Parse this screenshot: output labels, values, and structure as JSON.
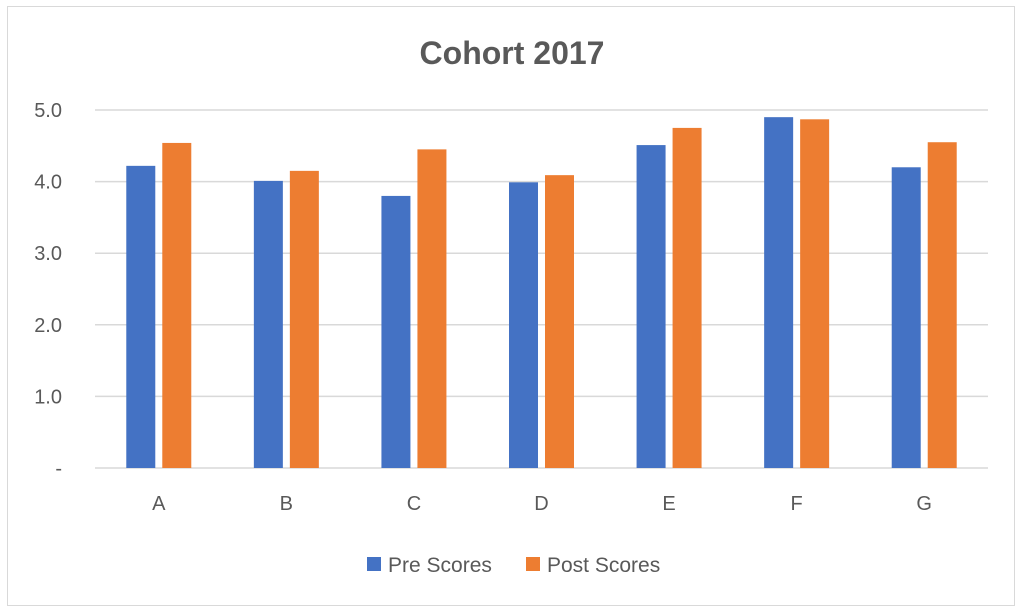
{
  "chart_data": {
    "type": "bar",
    "title": "Cohort 2017",
    "categories": [
      "A",
      "B",
      "C",
      "D",
      "E",
      "F",
      "G"
    ],
    "series": [
      {
        "name": "Pre Scores",
        "color": "#4472c4",
        "values": [
          4.22,
          4.01,
          3.8,
          3.99,
          4.51,
          4.9,
          4.2
        ]
      },
      {
        "name": "Post Scores",
        "color": "#ed7d31",
        "values": [
          4.54,
          4.15,
          4.45,
          4.09,
          4.75,
          4.87,
          4.55
        ]
      }
    ],
    "ylim": [
      0,
      5
    ],
    "yticks": [
      0,
      1,
      2,
      3,
      4,
      5
    ],
    "ytick_labels": [
      "-",
      "1.0",
      "2.0",
      "3.0",
      "4.0",
      "5.0"
    ],
    "xlabel": "",
    "ylabel": "",
    "grid": true,
    "legend_position": "bottom"
  }
}
